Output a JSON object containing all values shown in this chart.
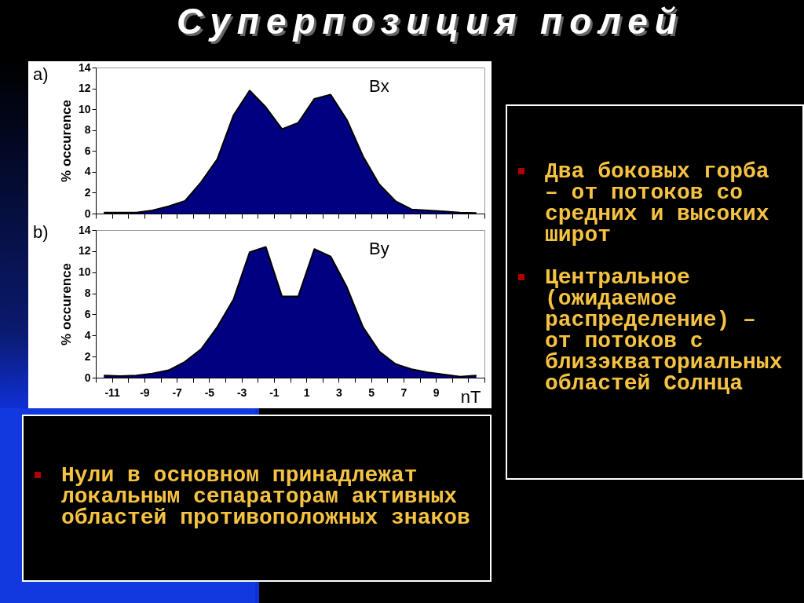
{
  "chart_data": [
    {
      "type": "area",
      "title": "Суперпозиция полей",
      "annotations": [
        "a)"
      ],
      "ylabel": "% occurence",
      "xlim": [
        -12,
        12
      ],
      "ylim": [
        0,
        14
      ],
      "yticks": [
        0,
        2,
        4,
        6,
        8,
        10,
        12,
        14
      ],
      "xticks": [
        {
          "value": -12,
          "label": null
        },
        -11,
        {
          "value": -10,
          "label": null
        },
        -9,
        {
          "value": -8,
          "label": null
        },
        -7,
        {
          "value": -6,
          "label": null
        },
        -5,
        {
          "value": -4,
          "label": null
        },
        -3,
        {
          "value": -2,
          "label": null
        },
        -1,
        {
          "value": 0,
          "label": null
        },
        1,
        {
          "value": 2,
          "label": null
        },
        3,
        {
          "value": 4,
          "label": null
        },
        5,
        {
          "value": 6,
          "label": null
        },
        7,
        {
          "value": 8,
          "label": null
        },
        9,
        {
          "value": 10,
          "label": null
        },
        {
          "value": 11,
          "label": null
        },
        {
          "value": 12,
          "label": null
        }
      ],
      "tick_labels": "y",
      "grid": false,
      "x": [
        -11.5,
        -10.5,
        -9.5,
        -8.5,
        -7.5,
        -6.5,
        -5.5,
        -4.5,
        -3.5,
        -2.5,
        -1.5,
        -0.5,
        0.5,
        1.5,
        2.5,
        3.5,
        4.5,
        5.5,
        6.5,
        7.5,
        8.5,
        9.5,
        10.5,
        11.5
      ],
      "series": [
        {
          "name": "Bx",
          "color": "#000080",
          "values": [
            0.1,
            0.1,
            0.1,
            0.3,
            0.7,
            1.2,
            3.0,
            5.2,
            9.4,
            11.8,
            10.2,
            8.1,
            8.7,
            11.0,
            11.4,
            9.0,
            5.5,
            2.8,
            1.2,
            0.4,
            0.3,
            0.2,
            0.1,
            0.05
          ]
        }
      ]
    },
    {
      "type": "area",
      "annotations": [
        "b)"
      ],
      "ylabel": "% occurence",
      "xlabel": "nT",
      "xlim": [
        -12,
        12
      ],
      "ylim": [
        0,
        14
      ],
      "yticks": [
        0,
        2,
        4,
        6,
        8,
        10,
        12,
        14
      ],
      "xticks": [
        {
          "value": -12,
          "label": null
        },
        -11,
        {
          "value": -10,
          "label": null
        },
        -9,
        {
          "value": -8,
          "label": null
        },
        -7,
        {
          "value": -6,
          "label": null
        },
        -5,
        {
          "value": -4,
          "label": null
        },
        -3,
        {
          "value": -2,
          "label": null
        },
        -1,
        {
          "value": 0,
          "label": null
        },
        1,
        {
          "value": 2,
          "label": null
        },
        3,
        {
          "value": 4,
          "label": null
        },
        5,
        {
          "value": 6,
          "label": null
        },
        7,
        {
          "value": 8,
          "label": null
        },
        9,
        {
          "value": 10,
          "label": null
        },
        {
          "value": 11,
          "label": null
        },
        {
          "value": 12,
          "label": null
        }
      ],
      "grid": false,
      "x": [
        -11.5,
        -10.5,
        -9.5,
        -8.5,
        -7.5,
        -6.5,
        -5.5,
        -4.5,
        -3.5,
        -2.5,
        -1.5,
        -0.5,
        0.5,
        1.5,
        2.5,
        3.5,
        4.5,
        5.5,
        6.5,
        7.5,
        8.5,
        9.5,
        10.5,
        11.5
      ],
      "series": [
        {
          "name": "By",
          "color": "#000080",
          "values": [
            0.2,
            0.15,
            0.2,
            0.4,
            0.7,
            1.5,
            2.7,
            4.8,
            7.4,
            11.9,
            12.4,
            7.7,
            7.7,
            12.2,
            11.5,
            8.6,
            4.8,
            2.5,
            1.3,
            0.8,
            0.5,
            0.3,
            0.1,
            0.2
          ]
        }
      ]
    },
    {
      "type": "other",
      "annotations": [
        "Два боковых горба – от потоков со средних и высоких широт",
        "Центральное (ожидаемое распределение) – от потоков с близэкваториальных областей Солнца"
      ]
    },
    {
      "type": "other",
      "annotations": [
        "Нули в основном принадлежат локальным сепараторам активных областей противоположных знаков"
      ]
    }
  ]
}
